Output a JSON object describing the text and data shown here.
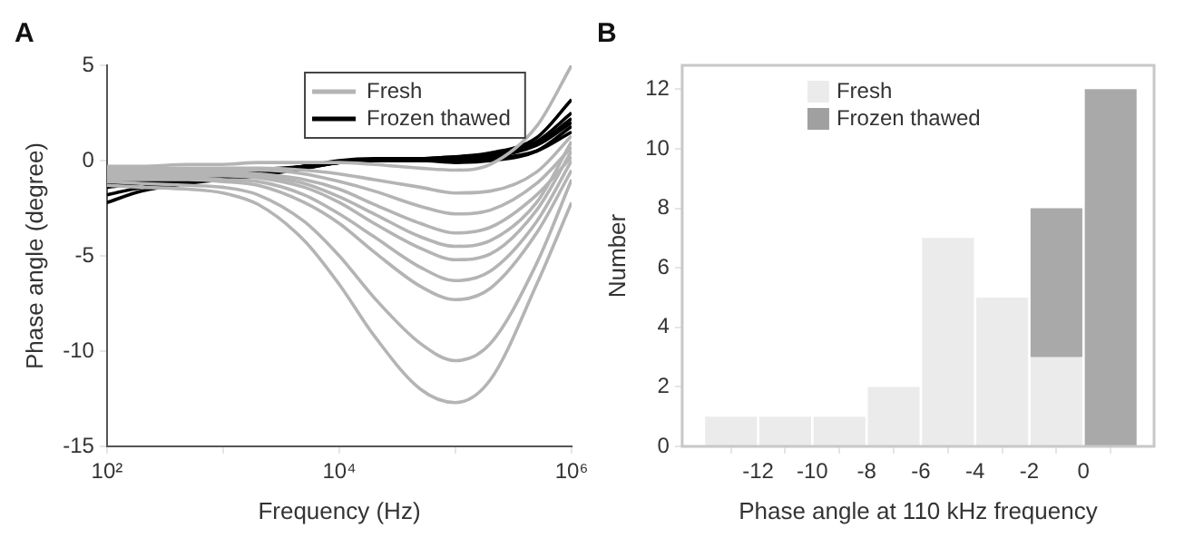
{
  "chart_data": [
    {
      "type": "line",
      "title": "A",
      "xlabel": "Frequency (Hz)",
      "ylabel": "Phase angle (degree)",
      "log": "x",
      "xlim": [
        100,
        1000000
      ],
      "xticks": [
        {
          "value": 100,
          "label": "10²"
        },
        {
          "value": 1000,
          "label": null
        },
        {
          "value": 10000,
          "label": "10⁴"
        },
        {
          "value": 100000,
          "label": null
        },
        {
          "value": 1000000,
          "label": "10⁶"
        }
      ],
      "ylim": [
        -15,
        5
      ],
      "yticks": [
        -15,
        -10,
        -5,
        0,
        5
      ],
      "grid": false,
      "legend": "top right",
      "marker": "none",
      "line_style": "solid",
      "x": [
        100,
        200,
        500,
        1000,
        2000,
        5000,
        10000,
        20000,
        50000,
        100000,
        200000,
        500000,
        1000000
      ],
      "series": [
        {
          "name": "Fresh",
          "color": "#b4b4b4",
          "values": [
            -1.3,
            -1.4,
            -1.5,
            -1.7,
            -2.3,
            -4.2,
            -6.5,
            -9.2,
            -12,
            -12.7,
            -11.5,
            -6.5,
            -2.2
          ]
        },
        {
          "color": "#b4b4b4",
          "values": [
            -1.1,
            -1.2,
            -1.3,
            -1.4,
            -1.8,
            -3.2,
            -5,
            -7.2,
            -9.6,
            -10.5,
            -9.6,
            -5.4,
            -1
          ]
        },
        {
          "color": "#b4b4b4",
          "values": [
            -1,
            -1,
            -1,
            -1.1,
            -1.3,
            -2.2,
            -3.3,
            -4.8,
            -6.6,
            -7.3,
            -6.7,
            -3.8,
            -0.5
          ]
        },
        {
          "color": "#b4b4b4",
          "values": [
            -0.9,
            -0.9,
            -0.9,
            -1,
            -1.1,
            -1.8,
            -2.8,
            -4,
            -5.6,
            -6.3,
            -5.8,
            -3.2,
            0
          ]
        },
        {
          "color": "#b4b4b4",
          "values": [
            -0.8,
            -0.8,
            -0.8,
            -0.8,
            -0.9,
            -1.4,
            -2.2,
            -3.3,
            -4.6,
            -5.2,
            -4.9,
            -2.6,
            0.5
          ]
        },
        {
          "color": "#b4b4b4",
          "values": [
            -0.7,
            -0.7,
            -0.7,
            -0.7,
            -0.8,
            -1.2,
            -1.9,
            -2.8,
            -4,
            -4.5,
            -4.2,
            -2.2,
            1
          ]
        },
        {
          "color": "#b4b4b4",
          "values": [
            -0.6,
            -0.6,
            -0.6,
            -0.6,
            -0.7,
            -1,
            -1.5,
            -2.3,
            -3.3,
            -3.8,
            -3.5,
            -1.8,
            0.2
          ]
        },
        {
          "color": "#b4b4b4",
          "values": [
            -0.5,
            -0.5,
            -0.5,
            -0.5,
            -0.5,
            -0.7,
            -1.1,
            -1.6,
            -2.4,
            -2.8,
            -2.6,
            -1.2,
            0.7
          ]
        },
        {
          "color": "#b4b4b4",
          "values": [
            -0.4,
            -0.4,
            -0.4,
            -0.4,
            -0.4,
            -0.5,
            -0.7,
            -1,
            -1.4,
            -1.7,
            -1.6,
            -0.6,
            1.3
          ]
        },
        {
          "color": "#b4b4b4",
          "values": [
            -0.3,
            -0.3,
            -0.2,
            -0.2,
            -0.1,
            -0.1,
            -0.1,
            -0.2,
            -0.4,
            -0.5,
            -0.2,
            1.8,
            5
          ]
        },
        {
          "name": "Frozen thawed",
          "color": "#000000",
          "values": [
            -2.2,
            -1.6,
            -1.2,
            -1,
            -0.8,
            -0.4,
            -0.1,
            0,
            0.1,
            0.2,
            0.4,
            1.2,
            3.2
          ]
        },
        {
          "color": "#000000",
          "values": [
            -1.8,
            -1.4,
            -1.1,
            -0.9,
            -0.7,
            -0.4,
            -0.1,
            0,
            0.1,
            0.1,
            0.3,
            1,
            2.5
          ]
        },
        {
          "color": "#000000",
          "values": [
            -1.4,
            -1.2,
            -1,
            -0.8,
            -0.6,
            -0.3,
            -0.1,
            0,
            0.1,
            0.1,
            0.2,
            0.8,
            2
          ]
        },
        {
          "color": "#000000",
          "values": [
            -1,
            -1,
            -0.9,
            -0.8,
            -0.6,
            -0.3,
            -0.1,
            0,
            0,
            0,
            0.1,
            0.5,
            1.5
          ]
        },
        {
          "color": "#000000",
          "values": [
            -0.8,
            -0.8,
            -0.8,
            -0.7,
            -0.5,
            -0.3,
            -0.1,
            0,
            0,
            -0.1,
            0,
            0.5,
            1.8
          ]
        },
        {
          "color": "#000000",
          "values": [
            -1.2,
            -1.1,
            -1,
            -0.9,
            -0.6,
            -0.3,
            0,
            0.1,
            0.1,
            0.2,
            0.3,
            0.9,
            2.2
          ]
        }
      ]
    },
    {
      "type": "histogram",
      "title": "B",
      "xlabel": "Phase angle at 110 kHz frequency",
      "ylabel": "Number",
      "xlim": [
        -14.8,
        2.6
      ],
      "xticks": [
        -12,
        -10,
        -8,
        -6,
        -4,
        -2,
        0
      ],
      "ylim": [
        0,
        12.8
      ],
      "yticks": [
        0,
        2,
        4,
        6,
        8,
        10,
        12
      ],
      "grid": false,
      "legend": "top left",
      "bins": [
        -14,
        -12,
        -10,
        -8,
        -6,
        -4,
        -2,
        0,
        2
      ],
      "series": [
        {
          "name": "Fresh",
          "color": "#ebebeb",
          "values": [
            1,
            1,
            1,
            2,
            7,
            5,
            3,
            0
          ]
        },
        {
          "name": "Frozen thawed",
          "color": "#a0a0a0",
          "values": [
            0,
            0,
            0,
            0,
            0,
            0,
            8,
            12
          ]
        }
      ]
    }
  ]
}
